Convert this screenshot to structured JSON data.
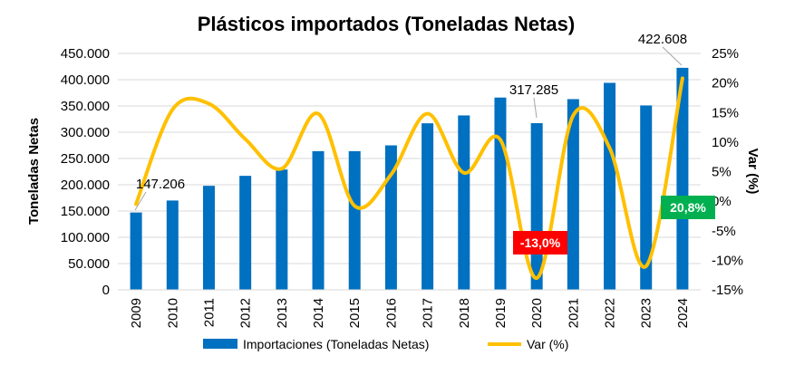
{
  "chart_data": {
    "type": "bar",
    "title": "Plásticos importados (Toneladas Netas)",
    "ylabel": "Toneladas Netas",
    "y2label": "Var (%)",
    "categories": [
      "2009",
      "2010",
      "2011",
      "2012",
      "2013",
      "2014",
      "2015",
      "2016",
      "2017",
      "2018",
      "2019",
      "2020",
      "2021",
      "2022",
      "2023",
      "2024"
    ],
    "ylim": [
      0,
      450000
    ],
    "y2lim": [
      -15,
      25
    ],
    "yticks": [
      "0",
      "50.000",
      "100.000",
      "150.000",
      "200.000",
      "250.000",
      "300.000",
      "350.000",
      "400.000",
      "450.000"
    ],
    "y2ticks": [
      "-15%",
      "-10%",
      "-5%",
      "0%",
      "5%",
      "10%",
      "15%",
      "20%",
      "25%"
    ],
    "series": [
      {
        "name": "Importaciones (Toneladas Netas)",
        "type": "bar",
        "color": "#0070C0",
        "values": [
          147206,
          170000,
          198000,
          217000,
          229000,
          264000,
          264000,
          275000,
          317000,
          332000,
          366000,
          317285,
          363000,
          394000,
          351000,
          422608
        ]
      },
      {
        "name": "Var (%)",
        "type": "line",
        "axis": "right",
        "color": "#FFC000",
        "values": [
          -0.5,
          15.5,
          16.5,
          10.5,
          5.5,
          14.8,
          -0.8,
          4.5,
          14.8,
          4.8,
          10.4,
          -13.0,
          14.5,
          9.0,
          -11.0,
          20.8
        ]
      }
    ],
    "data_labels": [
      {
        "index": 0,
        "text": "147.206"
      },
      {
        "index": 11,
        "text": "317.285"
      },
      {
        "index": 15,
        "text": "422.608"
      }
    ],
    "badges": [
      {
        "index": 11,
        "text": "-13,0%",
        "color": "#FF0000"
      },
      {
        "index": 15,
        "text": "20,8%",
        "color": "#00B050"
      }
    ],
    "legend_position": "bottom",
    "grid": true
  }
}
